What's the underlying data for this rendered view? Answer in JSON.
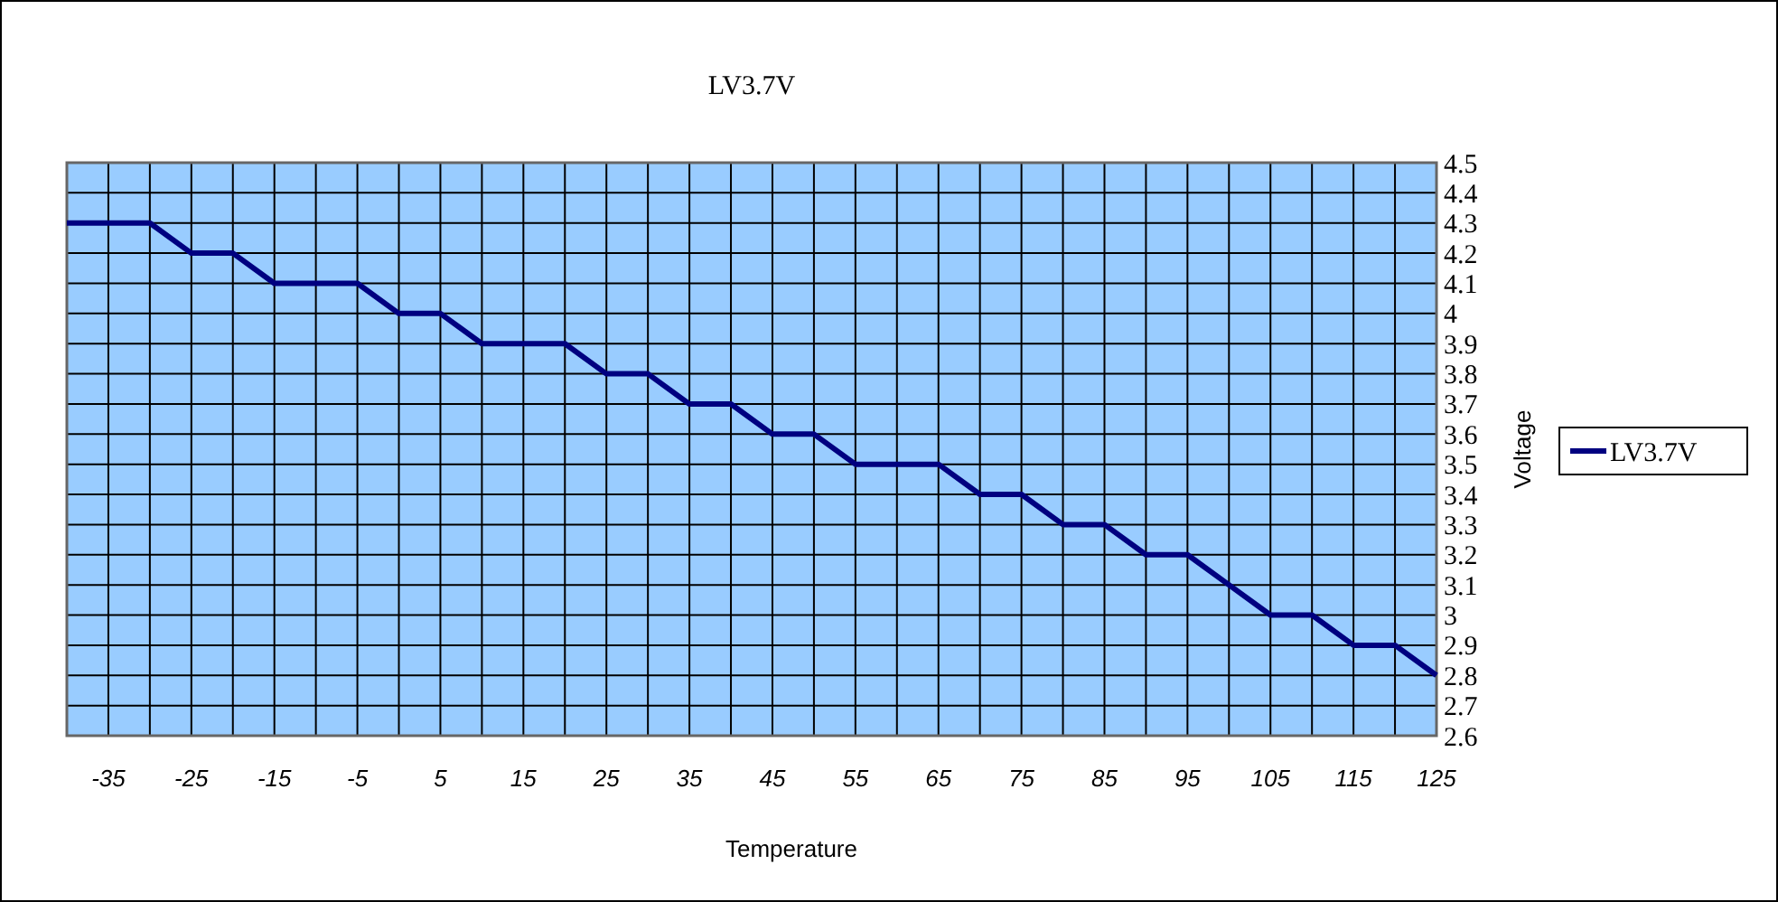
{
  "chart_data": {
    "type": "line",
    "title": "LV3.7V",
    "xlabel": "Temperature",
    "ylabel": "Voltage",
    "x": [
      -40,
      -35,
      -30,
      -25,
      -20,
      -15,
      -10,
      -5,
      0,
      5,
      10,
      15,
      20,
      25,
      30,
      35,
      40,
      45,
      50,
      55,
      60,
      65,
      70,
      75,
      80,
      85,
      90,
      95,
      100,
      105,
      110,
      115,
      120,
      125
    ],
    "series": [
      {
        "name": "LV3.7V",
        "color": "#000080",
        "values": [
          4.3,
          4.3,
          4.3,
          4.2,
          4.2,
          4.1,
          4.1,
          4.1,
          4.0,
          4.0,
          3.9,
          3.9,
          3.9,
          3.8,
          3.8,
          3.7,
          3.7,
          3.6,
          3.6,
          3.5,
          3.5,
          3.5,
          3.4,
          3.4,
          3.3,
          3.3,
          3.2,
          3.2,
          3.1,
          3.0,
          3.0,
          2.9,
          2.9,
          2.8
        ]
      }
    ],
    "xlim": [
      -40,
      125
    ],
    "xticks": [
      {
        "value": -40,
        "label": null
      },
      -35,
      {
        "value": -30,
        "label": null
      },
      -25,
      {
        "value": -20,
        "label": null
      },
      -15,
      {
        "value": -10,
        "label": null
      },
      -5,
      {
        "value": 0,
        "label": null
      },
      5,
      {
        "value": 10,
        "label": null
      },
      15,
      {
        "value": 20,
        "label": null
      },
      25,
      {
        "value": 30,
        "label": null
      },
      35,
      {
        "value": 40,
        "label": null
      },
      45,
      {
        "value": 50,
        "label": null
      },
      55,
      {
        "value": 60,
        "label": null
      },
      65,
      {
        "value": 70,
        "label": null
      },
      75,
      {
        "value": 80,
        "label": null
      },
      85,
      {
        "value": 90,
        "label": null
      },
      95,
      {
        "value": 100,
        "label": null
      },
      105,
      {
        "value": 110,
        "label": null
      },
      115,
      {
        "value": 120,
        "label": null
      },
      125
    ],
    "ylim": [
      2.6,
      4.5
    ],
    "yticks": [
      2.6,
      2.7,
      2.8,
      2.9,
      3,
      3.1,
      3.2,
      3.3,
      3.4,
      3.5,
      3.6,
      3.7,
      3.8,
      3.9,
      4,
      4.1,
      4.2,
      4.3,
      4.4,
      4.5
    ],
    "grid": true,
    "legend": "right",
    "marker": "none",
    "line_style": "solid"
  }
}
